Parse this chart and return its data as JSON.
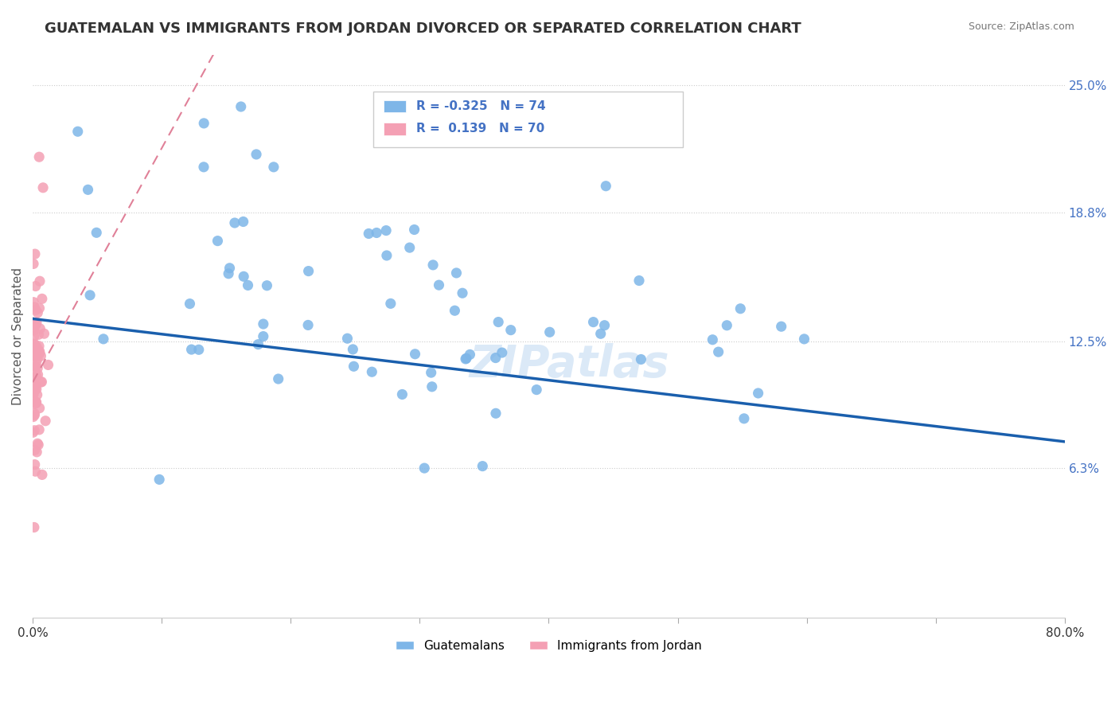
{
  "title": "GUATEMALAN VS IMMIGRANTS FROM JORDAN DIVORCED OR SEPARATED CORRELATION CHART",
  "source": "Source: ZipAtlas.com",
  "ylabel": "Divorced or Separated",
  "xmin": 0.0,
  "xmax": 0.8,
  "ymin": 0.0,
  "ymax": 0.265,
  "yticks": [
    0.063,
    0.125,
    0.188,
    0.25
  ],
  "ytick_labels": [
    "6.3%",
    "12.5%",
    "18.8%",
    "25.0%"
  ],
  "xticks": [
    0.0,
    0.1,
    0.2,
    0.3,
    0.4,
    0.5,
    0.6,
    0.7,
    0.8
  ],
  "xtick_labels": [
    "0.0%",
    "",
    "",
    "",
    "",
    "",
    "",
    "",
    "80.0%"
  ],
  "legend_blue_label": "Guatemalans",
  "legend_pink_label": "Immigrants from Jordan",
  "R_blue": -0.325,
  "N_blue": 74,
  "R_pink": 0.139,
  "N_pink": 70,
  "blue_color": "#7EB6E8",
  "pink_color": "#F4A0B4",
  "trend_blue_color": "#1A5FAD",
  "trend_pink_color": "#E08098",
  "watermark": "ZIPatlas"
}
